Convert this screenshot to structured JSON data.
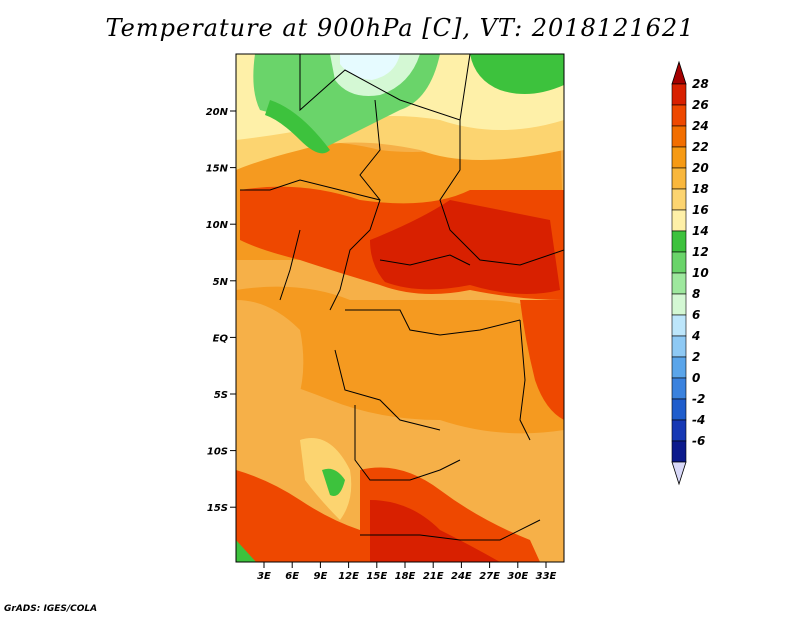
{
  "title": "Temperature at 900hPa [C], VT: 2018121621",
  "credit": "GrADS: IGES/COLA",
  "map": {
    "lat_labels": [
      "20N",
      "15N",
      "10N",
      "5N",
      "EQ",
      "5S",
      "10S",
      "15S"
    ],
    "lon_labels": [
      "3E",
      "6E",
      "9E",
      "12E",
      "15E",
      "18E",
      "21E",
      "24E",
      "27E",
      "30E",
      "33E"
    ]
  },
  "colorbar": {
    "labels": [
      "28",
      "26",
      "24",
      "22",
      "20",
      "18",
      "16",
      "14",
      "12",
      "10",
      "8",
      "6",
      "4",
      "2",
      "0",
      "-2",
      "-4",
      "-6"
    ],
    "colors": [
      "#a50000",
      "#d82000",
      "#ee4800",
      "#f26e00",
      "#f69a14",
      "#f9b73c",
      "#fcd470",
      "#fef0a8",
      "#3dc23d",
      "#6ad46a",
      "#9ee89e",
      "#d4f8d4",
      "#bde6fb",
      "#8ec9f4",
      "#5aa5ea",
      "#3a82de",
      "#1f5dcc",
      "#1638b4",
      "#0c1a8c",
      "#d8d8f8"
    ]
  }
}
